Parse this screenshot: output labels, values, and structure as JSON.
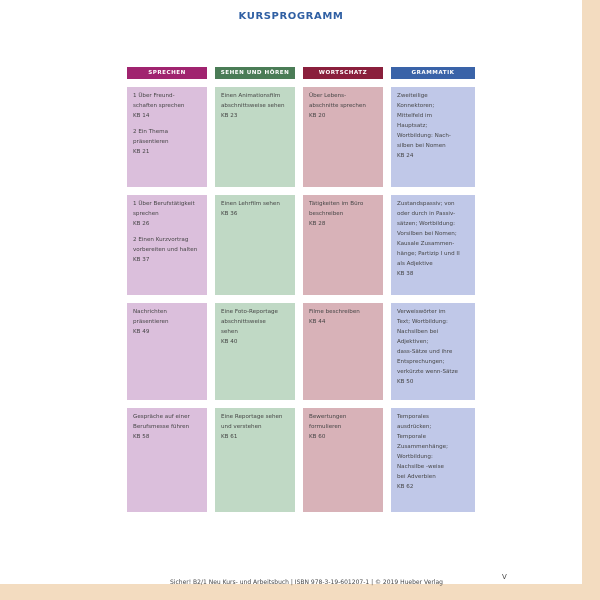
{
  "title": "KURSPROGRAMM",
  "columns": [
    {
      "label": "SPRECHEN",
      "header_color": "#a0236f",
      "cell_color": "#dbbfdc"
    },
    {
      "label": "SEHEN UND HÖREN",
      "header_color": "#4a7c56",
      "cell_color": "#c0d9c5"
    },
    {
      "label": "WORTSCHATZ",
      "header_color": "#8a1f3c",
      "cell_color": "#d8b2b8"
    },
    {
      "label": "GRAMMATIK",
      "header_color": "#3a63a8",
      "cell_color": "#c0c8e8"
    }
  ],
  "rows": [
    [
      {
        "blocks": [
          [
            "1 Über Freund-",
            "schaften sprechen",
            "KB 14"
          ],
          [
            "2 Ein Thema",
            "präsentieren",
            "KB 21"
          ]
        ]
      },
      {
        "blocks": [
          [
            "Einen Animationsfilm",
            "abschnittsweise sehen",
            "KB 23"
          ]
        ]
      },
      {
        "blocks": [
          [
            "Über Lebens-",
            "abschnitte sprechen",
            "KB 20"
          ]
        ]
      },
      {
        "blocks": [
          [
            "Zweiteilige",
            "Konnektoren;",
            "Mittelfeld im",
            "Hauptsatz;",
            "Wortbildung: Nach-",
            "silben bei Nomen",
            "KB 24"
          ]
        ]
      }
    ],
    [
      {
        "blocks": [
          [
            "1 Über Berufstätigkeit",
            "sprechen",
            "KB 26"
          ],
          [
            "2 Einen Kurzvortrag",
            "vorbereiten und halten",
            "KB 37"
          ]
        ]
      },
      {
        "blocks": [
          [
            "Einen Lehrfilm sehen",
            "KB 36"
          ]
        ]
      },
      {
        "blocks": [
          [
            "Tätigkeiten im Büro",
            "beschreiben",
            "KB 28"
          ]
        ]
      },
      {
        "blocks": [
          [
            "Zustandspassiv; von",
            "oder durch in Passiv-",
            "sätzen; Wortbildung:",
            "Vorsilben bei Nomen;",
            "Kausale Zusammen-",
            "hänge; Partizip I und II",
            "als Adjektive",
            "KB 38"
          ]
        ]
      }
    ],
    [
      {
        "blocks": [
          [
            "Nachrichten",
            "präsentieren",
            "KB 49"
          ]
        ]
      },
      {
        "blocks": [
          [
            "Eine Foto-Reportage",
            "abschnittsweise",
            "sehen",
            "KB 40"
          ]
        ]
      },
      {
        "blocks": [
          [
            "Filme beschreiben",
            "KB 44"
          ]
        ]
      },
      {
        "blocks": [
          [
            "Verweiswörter im",
            "Text; Wortbildung:",
            "Nachsilben bei",
            "Adjektiven;",
            "dass-Sätze und ihre",
            "Entsprechungen;",
            "verkürzte wenn-Sätze",
            "KB 50"
          ]
        ]
      }
    ],
    [
      {
        "blocks": [
          [
            "Gespräche auf einer",
            "Berufsmesse führen",
            "KB 58"
          ]
        ]
      },
      {
        "blocks": [
          [
            "Eine Reportage sehen",
            "und verstehen",
            "KB 61"
          ]
        ]
      },
      {
        "blocks": [
          [
            "Bewertungen",
            "formulieren",
            "KB 60"
          ]
        ]
      },
      {
        "blocks": [
          [
            "Temporales",
            "ausdrücken;",
            "Temporale",
            "Zusammenhänge;",
            "Wortbildung:",
            "Nachsilbe -weise",
            "bei Adverbien",
            "KB 62"
          ]
        ]
      }
    ]
  ],
  "footer": "Sicher! B2/1 Neu Kurs- und Arbeitsbuch | ISBN 978-3-19-601207-1 | © 2019 Hueber Verlag",
  "page_number": "V"
}
